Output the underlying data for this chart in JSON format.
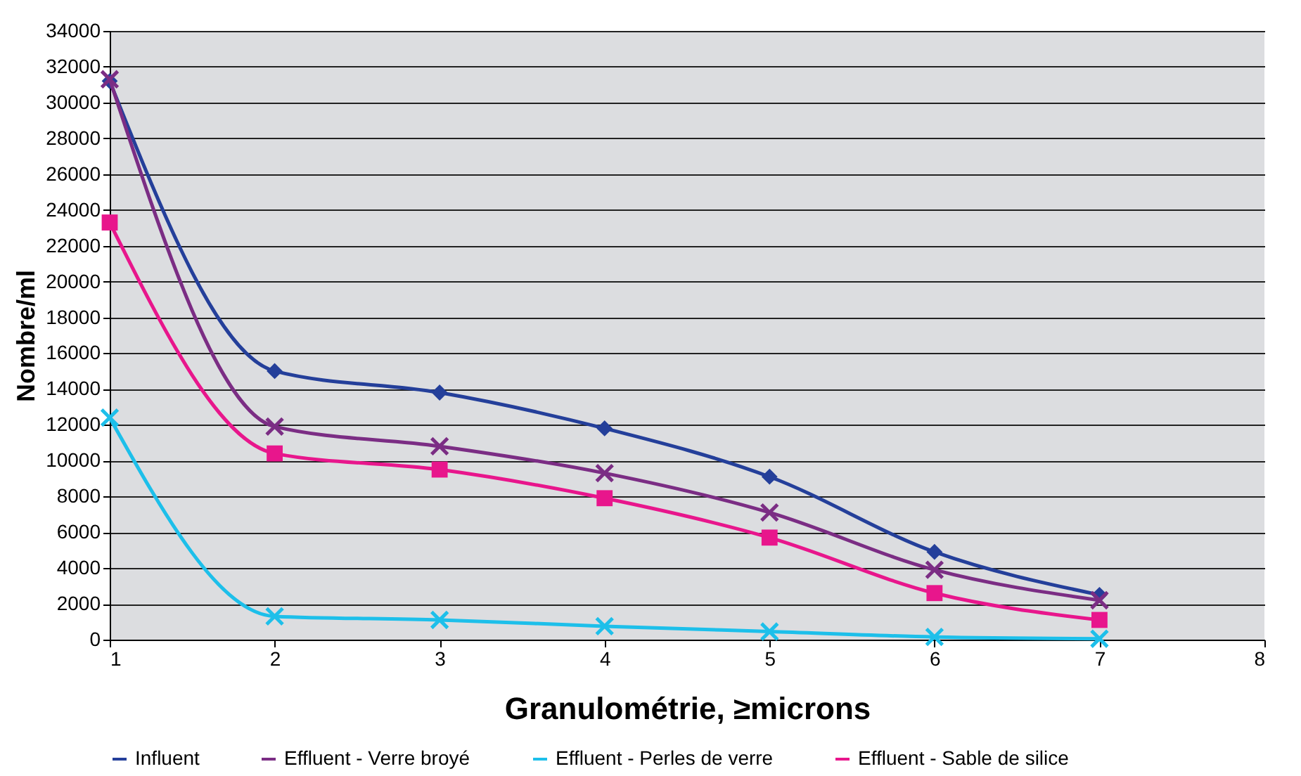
{
  "chart_data": {
    "type": "line",
    "xlabel": "Granulométrie, ≥microns",
    "ylabel": "Nombre/ml",
    "x": [
      1,
      2,
      3,
      4,
      5,
      6,
      7
    ],
    "series": [
      {
        "name": "Influent",
        "color": "#243f9a",
        "marker": "diamond",
        "values": [
          31200,
          15000,
          13800,
          11800,
          9100,
          4900,
          2500
        ]
      },
      {
        "name": "Effluent - Verre broyé",
        "color": "#7b2d84",
        "marker": "cross",
        "values": [
          31300,
          11900,
          10800,
          9300,
          7100,
          3900,
          2200
        ]
      },
      {
        "name": "Effluent - Perles de verre",
        "color": "#1dbfea",
        "marker": "cross",
        "values": [
          12400,
          1300,
          1100,
          750,
          450,
          150,
          50
        ]
      },
      {
        "name": "Effluent - Sable de silice",
        "color": "#e8168c",
        "marker": "square",
        "values": [
          23300,
          10400,
          9500,
          7900,
          5700,
          2600,
          1100
        ]
      }
    ],
    "xlim": [
      1,
      8
    ],
    "xticks": [
      1,
      2,
      3,
      4,
      5,
      6,
      7,
      8
    ],
    "ylim": [
      0,
      34000
    ],
    "yticks": [
      0,
      2000,
      4000,
      6000,
      8000,
      10000,
      12000,
      14000,
      16000,
      18000,
      20000,
      22000,
      24000,
      26000,
      28000,
      30000,
      32000,
      34000
    ],
    "grid": "y",
    "legend": "bottom",
    "line_style": "solid"
  }
}
